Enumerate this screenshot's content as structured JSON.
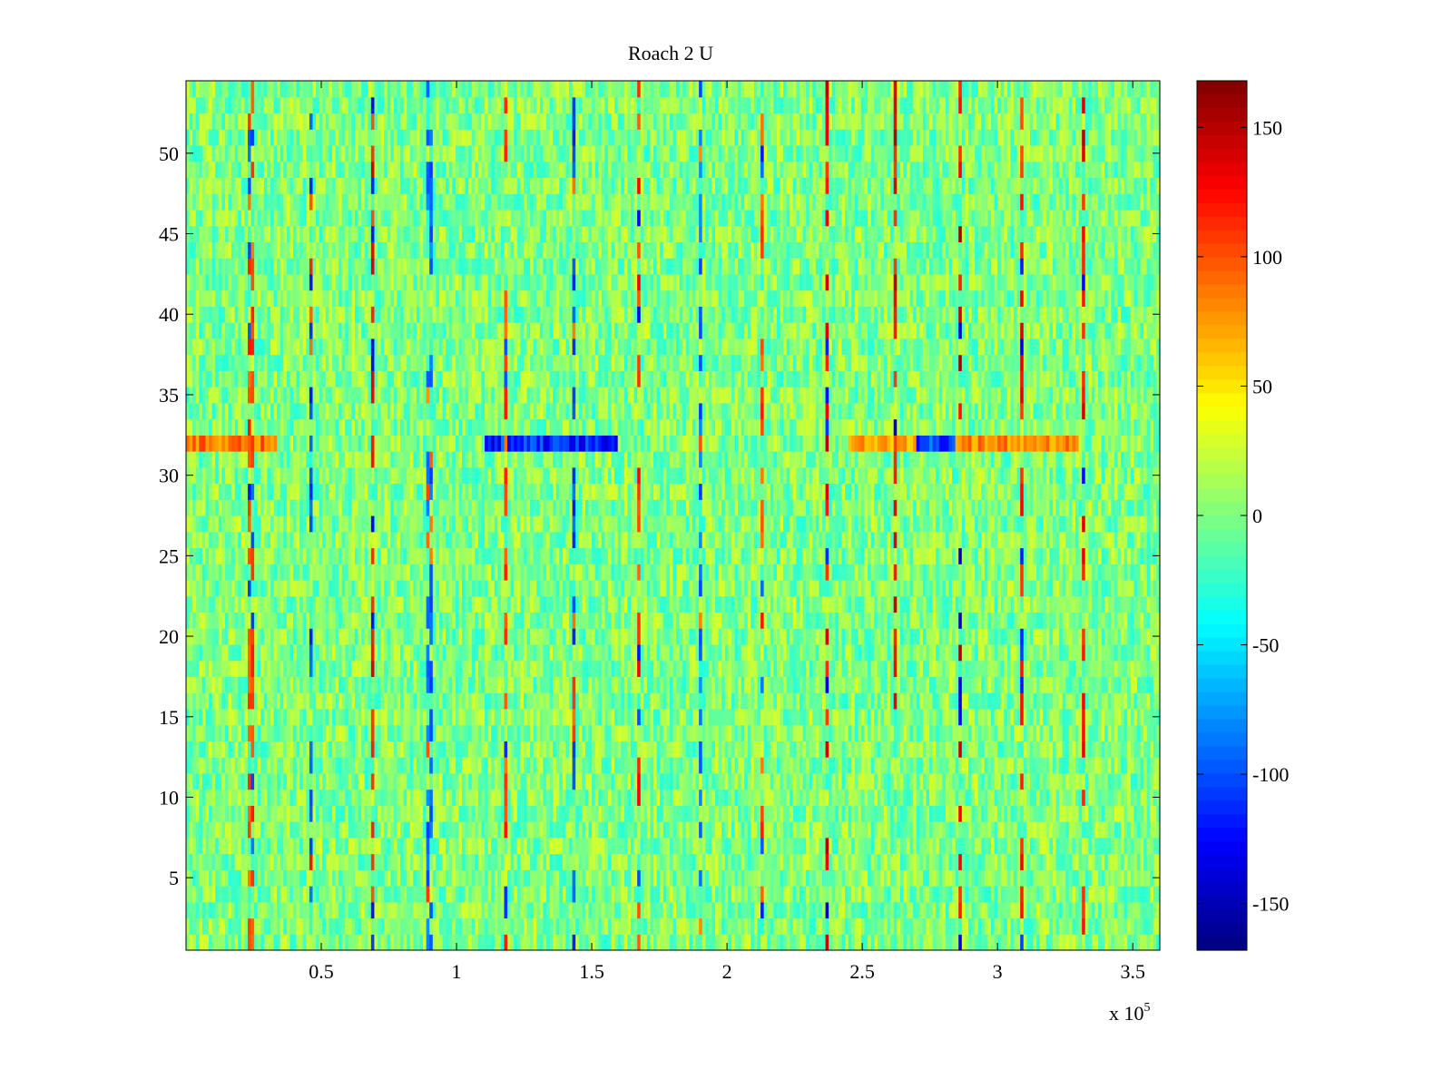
{
  "chart_data": {
    "type": "heatmap",
    "title": "Roach 2 U",
    "xlabel": "",
    "ylabel": "",
    "x_multiplier_label": "x 10",
    "x_multiplier_exponent": "5",
    "xlim": [
      0,
      3.6
    ],
    "ylim": [
      0.5,
      54.5
    ],
    "x_ticks": [
      0.5,
      1,
      1.5,
      2,
      2.5,
      3,
      3.5
    ],
    "x_tick_labels": [
      "0.5",
      "1",
      "1.5",
      "2",
      "2.5",
      "3",
      "3.5"
    ],
    "y_ticks": [
      5,
      10,
      15,
      20,
      25,
      30,
      35,
      40,
      45,
      50
    ],
    "y_tick_labels": [
      "5",
      "10",
      "15",
      "20",
      "25",
      "30",
      "35",
      "40",
      "45",
      "50"
    ],
    "rows": 54,
    "colormap": "jet",
    "clim": [
      -168,
      168
    ],
    "colorbar_ticks": [
      150,
      100,
      50,
      0,
      -50,
      -100,
      -150
    ],
    "colorbar_tick_labels": [
      "150",
      "100",
      "50",
      "0",
      "-50",
      "-100",
      "-150"
    ],
    "baseline_value": 0,
    "noise_amplitude": 30,
    "strong_row": 32,
    "strong_row_segments": [
      {
        "x_start": 0.0,
        "x_end": 0.33,
        "value": 110
      },
      {
        "x_start": 1.1,
        "x_end": 1.6,
        "value": -140
      },
      {
        "x_start": 2.45,
        "x_end": 2.7,
        "value": 90
      },
      {
        "x_start": 2.7,
        "x_end": 2.85,
        "value": -130
      },
      {
        "x_start": 2.85,
        "x_end": 3.3,
        "value": 100
      }
    ],
    "vertical_stripes": [
      {
        "x": 0.24,
        "value": 120
      },
      {
        "x": 0.46,
        "value": -120
      },
      {
        "x": 0.69,
        "value": 140
      },
      {
        "x": 0.9,
        "value": -110
      },
      {
        "x": 1.18,
        "value": 120
      },
      {
        "x": 1.43,
        "value": -120
      },
      {
        "x": 1.67,
        "value": 130
      },
      {
        "x": 1.9,
        "value": -110
      },
      {
        "x": 2.13,
        "value": 120
      },
      {
        "x": 2.37,
        "value": 150
      },
      {
        "x": 2.62,
        "value": 150
      },
      {
        "x": 2.86,
        "value": 155
      },
      {
        "x": 3.09,
        "value": 140
      },
      {
        "x": 3.32,
        "value": 150
      }
    ],
    "grid": false,
    "legend": "colorbar-right"
  }
}
